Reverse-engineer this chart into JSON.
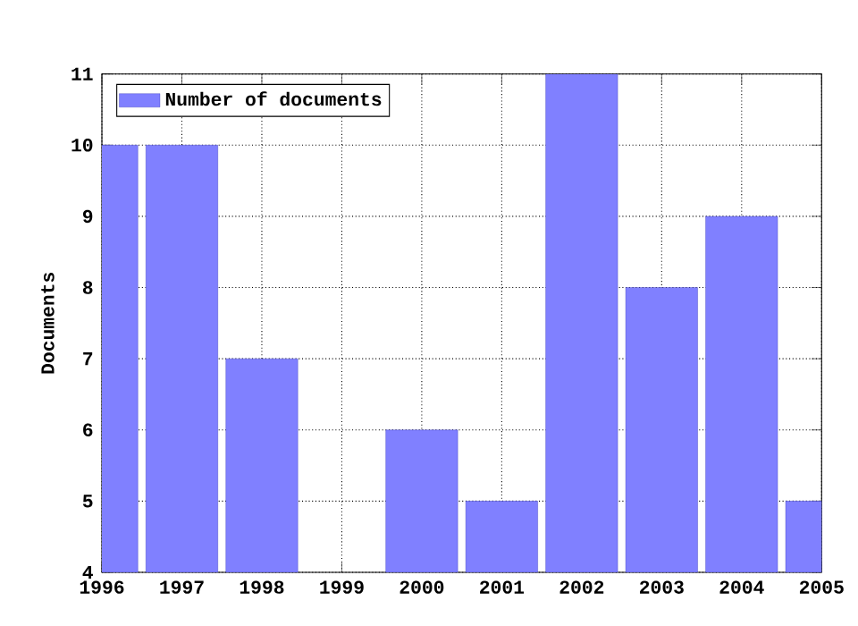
{
  "chart_data": {
    "type": "bar",
    "ylabel": "Documents",
    "x": [
      1996,
      1997,
      1998,
      1999,
      2000,
      2001,
      2002,
      2003,
      2004,
      2005
    ],
    "series": [
      {
        "name": "Number of documents",
        "color": "#8080ff",
        "values": [
          10,
          10,
          7,
          null,
          6,
          5,
          11,
          8,
          9,
          5
        ]
      }
    ],
    "xlim": [
      1996,
      2005
    ],
    "ylim": [
      4,
      11
    ],
    "xticks": [
      1996,
      1997,
      1998,
      1999,
      2000,
      2001,
      2002,
      2003,
      2004,
      2005
    ],
    "yticks": [
      4,
      5,
      6,
      7,
      8,
      9,
      10,
      11
    ],
    "grid": true,
    "legend": "top left"
  }
}
